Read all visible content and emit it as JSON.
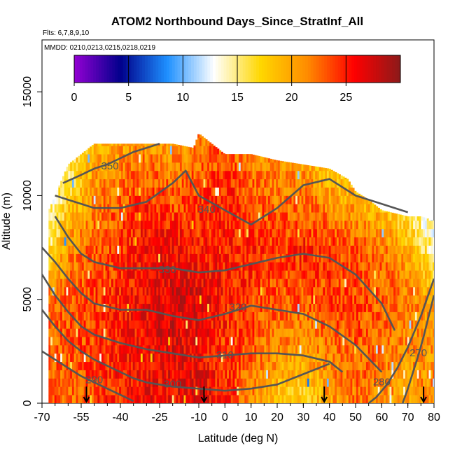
{
  "chart_data": {
    "type": "heatmap",
    "title": "ATOM2 Northbound Days_Since_StratInf_All",
    "flights_label": "Flts: 6,7,8,9,10",
    "dates_label": "MMDD: 0210,0213,0215,0218,0219",
    "xlabel": "Latitude (deg N)",
    "ylabel": "Altitude (m)",
    "xlim": [
      -70,
      80
    ],
    "ylim": [
      0,
      17500
    ],
    "x_ticks": [
      -70,
      -55,
      -40,
      -25,
      -10,
      0,
      10,
      20,
      30,
      40,
      50,
      60,
      70,
      80
    ],
    "y_ticks": [
      0,
      5000,
      10000,
      15000
    ],
    "colorbar": {
      "range": [
        0,
        30
      ],
      "ticks": [
        0,
        5,
        10,
        15,
        20,
        25
      ],
      "colors": [
        "#9400d3",
        "#00008b",
        "#1e90ff",
        "#ffffff",
        "#ffd700",
        "#ff8c00",
        "#ff0000",
        "#8b1a1a"
      ]
    },
    "profile_latitudes": [
      -53,
      -8,
      38,
      76
    ],
    "envelope_top": {
      "lat": [
        -70,
        -65,
        -60,
        -50,
        -40,
        -30,
        -20,
        -12,
        -10,
        0,
        10,
        20,
        30,
        40,
        47,
        50,
        55,
        60,
        70,
        75,
        80
      ],
      "alt": [
        8500,
        10000,
        11500,
        12500,
        12500,
        12500,
        12500,
        12300,
        13000,
        12000,
        12000,
        11700,
        11500,
        11300,
        10800,
        10200,
        9800,
        9300,
        9000,
        9000,
        8800
      ]
    },
    "field": {
      "lat_samples": [
        -70,
        -60,
        -50,
        -40,
        -30,
        -20,
        -10,
        0,
        10,
        20,
        30,
        40,
        50,
        60,
        70,
        80
      ],
      "alt_samples": [
        0,
        2500,
        5000,
        7500,
        10000,
        12500
      ],
      "days": [
        [
          24,
          22,
          24,
          25,
          26,
          26,
          27,
          25,
          21,
          18,
          17,
          20,
          22,
          21,
          20,
          22
        ],
        [
          23,
          23,
          24,
          25,
          26,
          27,
          26,
          24,
          23,
          21,
          20,
          22,
          23,
          22,
          21,
          21
        ],
        [
          22,
          23,
          24,
          25,
          26,
          27,
          27,
          25,
          24,
          23,
          23,
          24,
          24,
          23,
          22,
          20
        ],
        [
          14,
          21,
          23,
          24,
          26,
          26,
          25,
          25,
          25,
          24,
          25,
          24,
          23,
          22,
          19,
          14
        ],
        [
          12,
          17,
          21,
          23,
          24,
          23,
          24,
          25,
          23,
          22,
          22,
          20,
          19,
          17,
          14,
          12
        ],
        [
          13,
          15,
          19,
          20,
          21,
          20,
          22,
          23,
          21,
          20,
          19,
          17,
          16,
          15,
          14,
          14
        ]
      ]
    },
    "contours": [
      {
        "label": "290",
        "label_at": [
          -50,
          1100
        ],
        "lat": [
          -70,
          -65,
          -60,
          -55,
          -50,
          -45,
          -40,
          -35
        ],
        "alt": [
          2500,
          2100,
          1700,
          1300,
          1000,
          700,
          400,
          100
        ]
      },
      {
        "label": "300",
        "label_at": [
          -20,
          900
        ],
        "lat": [
          -70,
          -65,
          -60,
          -55,
          -50,
          -45,
          -40,
          -35,
          -30,
          -25,
          -20,
          -15,
          -10,
          -5,
          0,
          5,
          10,
          20,
          30,
          40
        ],
        "alt": [
          4500,
          3700,
          3000,
          2500,
          2100,
          1800,
          1500,
          1200,
          1000,
          900,
          800,
          750,
          700,
          650,
          600,
          650,
          700,
          900,
          1400,
          1900
        ]
      },
      {
        "label": "310",
        "label_at": [
          0,
          2300
        ],
        "lat": [
          -70,
          -65,
          -60,
          -55,
          -50,
          -40,
          -30,
          -20,
          -10,
          0,
          10,
          20,
          30,
          40,
          45
        ],
        "alt": [
          6200,
          5200,
          4400,
          3700,
          3300,
          2900,
          2600,
          2400,
          2200,
          2300,
          2400,
          2400,
          2300,
          2000,
          1500
        ]
      },
      {
        "label": "320",
        "label_at": [
          5,
          4600
        ],
        "lat": [
          -70,
          -65,
          -60,
          -55,
          -50,
          -40,
          -30,
          -20,
          -10,
          0,
          10,
          20,
          30,
          40,
          50,
          60
        ],
        "alt": [
          7500,
          6800,
          6000,
          5300,
          4800,
          4500,
          4500,
          4200,
          4000,
          4300,
          4700,
          4500,
          4300,
          3700,
          2800,
          1500
        ]
      },
      {
        "label": "330",
        "label_at": [
          -22,
          6400
        ],
        "lat": [
          -65,
          -60,
          -55,
          -50,
          -40,
          -30,
          -20,
          -10,
          0,
          10,
          20,
          30,
          40,
          50,
          60,
          65
        ],
        "alt": [
          9000,
          8000,
          7200,
          6800,
          6500,
          6500,
          6500,
          6300,
          6400,
          6700,
          7000,
          7200,
          7000,
          6200,
          4800,
          3500
        ]
      },
      {
        "label": "340",
        "label_at": [
          -7,
          9300
        ],
        "lat": [
          -65,
          -60,
          -55,
          -50,
          -40,
          -30,
          -20,
          -15,
          -10,
          0,
          10,
          20,
          30,
          40,
          50,
          60,
          70
        ],
        "alt": [
          10000,
          9800,
          9600,
          9400,
          9400,
          9700,
          10600,
          11200,
          10000,
          9300,
          8600,
          9400,
          10500,
          10800,
          10000,
          9600,
          9200
        ]
      },
      {
        "label": "350",
        "label_at": [
          -44,
          11400
        ],
        "lat": [
          -62,
          -55,
          -50,
          -45,
          -40,
          -35,
          -30,
          -25
        ],
        "alt": [
          10600,
          11000,
          11300,
          11500,
          11800,
          12100,
          12300,
          12500
        ]
      },
      {
        "label": "280",
        "label_at": [
          60,
          1000
        ],
        "lat": [
          55,
          58,
          62,
          66,
          70,
          75,
          80
        ],
        "alt": [
          0,
          300,
          900,
          1700,
          2700,
          4200,
          6000
        ]
      },
      {
        "label": "270",
        "label_at": [
          74,
          2400
        ],
        "lat": [
          68,
          70,
          72,
          74,
          76,
          78,
          80
        ],
        "alt": [
          0,
          700,
          1500,
          2300,
          3200,
          4200,
          5200
        ]
      }
    ]
  }
}
